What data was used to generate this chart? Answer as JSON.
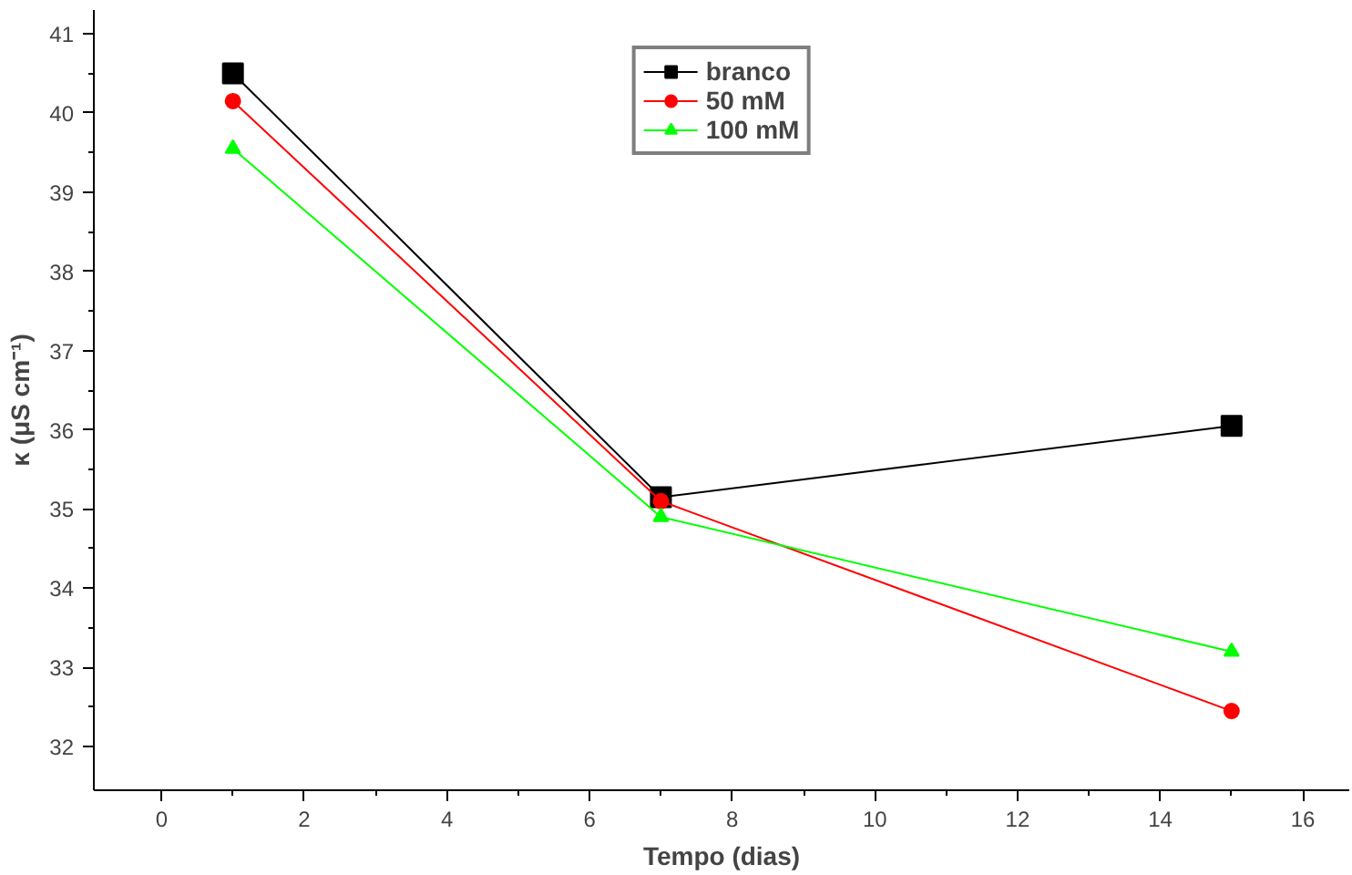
{
  "chart_data": {
    "type": "line",
    "xlabel": "Tempo (dias)",
    "ylabel": "κ (μS cm⁻¹)",
    "x": [
      1,
      7,
      15
    ],
    "series": [
      {
        "name": "branco",
        "color": "#000000",
        "marker": "square",
        "values": [
          40.5,
          35.15,
          36.05
        ]
      },
      {
        "name": "50 mM",
        "color": "#ff0000",
        "marker": "circle",
        "values": [
          40.15,
          35.1,
          32.45
        ]
      },
      {
        "name": "100 mM",
        "color": "#00ff00",
        "marker": "triangle",
        "values": [
          39.55,
          34.9,
          33.2
        ]
      }
    ],
    "xlim": [
      -0.95,
      16.65
    ],
    "ylim": [
      31.45,
      41.3
    ],
    "xticks": [
      0,
      2,
      4,
      6,
      8,
      10,
      12,
      14,
      16
    ],
    "yticks": [
      32,
      33,
      34,
      35,
      36,
      37,
      38,
      39,
      40,
      41
    ],
    "grid": false,
    "legend": "top",
    "line_style": "solid"
  }
}
